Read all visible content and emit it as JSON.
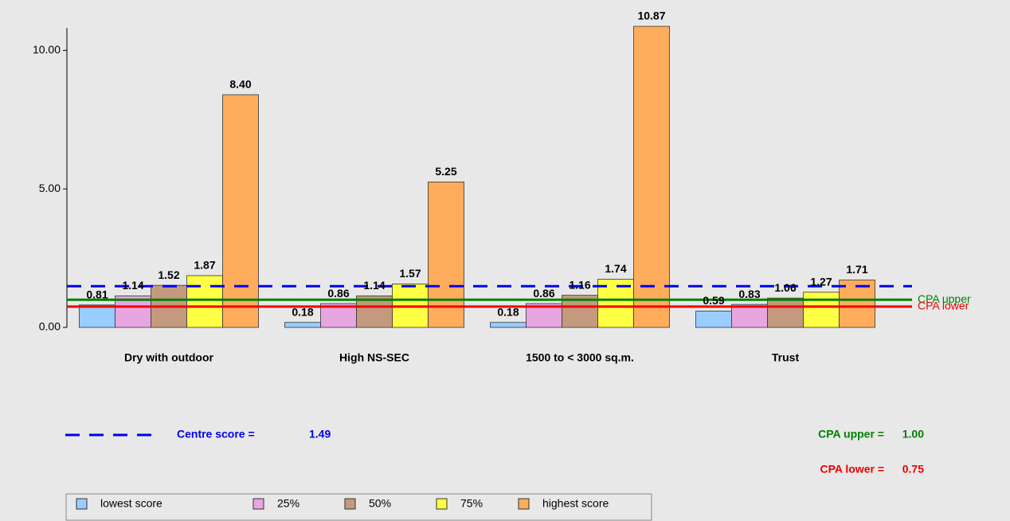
{
  "chart_data": {
    "type": "bar",
    "categories": [
      "Dry with outdoor",
      "High NS-SEC",
      "1500 to < 3000 sq.m.",
      "Trust"
    ],
    "series": [
      {
        "name": "lowest score",
        "color": "#99ccff",
        "values": [
          0.81,
          0.18,
          0.18,
          0.59
        ],
        "value_labels": [
          "0.81",
          "0.18",
          "0.18",
          "0.59"
        ]
      },
      {
        "name": "25%",
        "color": "#e8a6e0",
        "values": [
          1.14,
          0.86,
          0.86,
          0.83
        ],
        "value_labels": [
          "1.14",
          "0.86",
          "0.86",
          "0.83"
        ]
      },
      {
        "name": "50%",
        "color": "#c49a7e",
        "values": [
          1.52,
          1.14,
          1.16,
          1.06
        ],
        "value_labels": [
          "1.52",
          "1.14",
          "1.16",
          "1.06"
        ]
      },
      {
        "name": "75%",
        "color": "#ffff44",
        "values": [
          1.87,
          1.57,
          1.74,
          1.27
        ],
        "value_labels": [
          "1.87",
          "1.57",
          "1.74",
          "1.27"
        ]
      },
      {
        "name": "highest score",
        "color": "#ffad5c",
        "values": [
          8.4,
          5.25,
          10.87,
          1.71
        ],
        "value_labels": [
          "8.40",
          "5.25",
          "10.87",
          "1.71"
        ]
      }
    ],
    "ylim": [
      0,
      10.9
    ],
    "yticks": [
      {
        "value": 0,
        "label": "0.00"
      },
      {
        "value": 5,
        "label": "5.00"
      },
      {
        "value": 10,
        "label": "10.00"
      }
    ],
    "reference_lines": [
      {
        "name": "Centre score =",
        "value": 1.49,
        "value_label": "1.49",
        "color": "#0000ee",
        "style": "dashed"
      },
      {
        "name": "CPA upper =",
        "line_label": "CPA upper",
        "value": 1.0,
        "value_label": "1.00",
        "color": "#008000",
        "style": "solid"
      },
      {
        "name": "CPA lower =",
        "line_label": "CPA lower",
        "value": 0.75,
        "value_label": "0.75",
        "color": "#ee0000",
        "style": "solid"
      }
    ],
    "legend": "bottom-left"
  }
}
